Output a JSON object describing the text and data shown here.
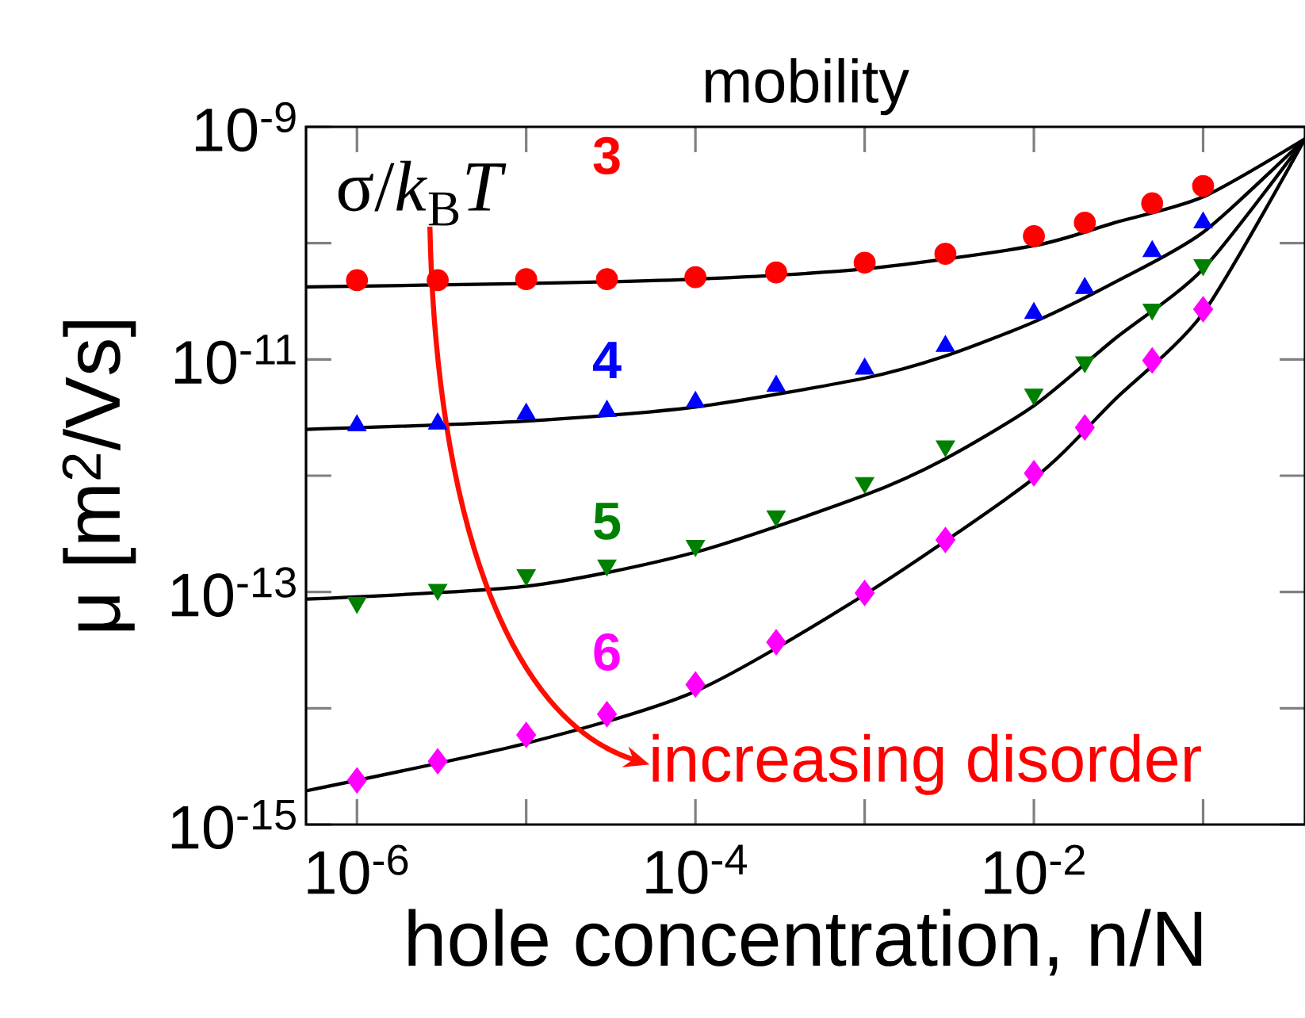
{
  "chart_data": {
    "type": "scatter",
    "title": "mobility",
    "xlabel": "hole concentration, n/N",
    "ylabel": "μ [m$^{2}$/Vs]",
    "annotations": [
      "σ/*k*$_{B}$*T*",
      "increasing disorder"
    ],
    "log": "xy",
    "xlim": [
      5e-07,
      0.4
    ],
    "ylim": [
      1e-15,
      1e-09
    ],
    "xticks": [
      {
        "value": 1e-06,
        "label": "10$^{-6}$"
      },
      {
        "value": 1e-05,
        "label": null
      },
      {
        "value": 0.0001,
        "label": "10$^{-4}$"
      },
      {
        "value": 0.001,
        "label": null
      },
      {
        "value": 0.01,
        "label": "10$^{-2}$"
      },
      {
        "value": 0.1,
        "label": null
      }
    ],
    "yticks": [
      {
        "value": 1e-15,
        "label": "10$^{-15}$"
      },
      {
        "value": 1e-14,
        "label": null
      },
      {
        "value": 1e-13,
        "label": "10$^{-13}$"
      },
      {
        "value": 1e-12,
        "label": null
      },
      {
        "value": 1e-11,
        "label": "10$^{-11}$"
      },
      {
        "value": 1e-10,
        "label": null
      },
      {
        "value": 1e-09,
        "label": "10$^{-9}$"
      }
    ],
    "x": [
      1e-06,
      3e-06,
      1e-05,
      3e-05,
      0.0001,
      0.0003,
      0.001,
      0.003,
      0.01,
      0.02,
      0.05,
      0.1
    ],
    "series": [
      {
        "name": "3",
        "color": "#ff0000",
        "marker": "circle",
        "values": [
          4.8e-11,
          4.8e-11,
          4.9e-11,
          4.9e-11,
          5.1e-11,
          5.6e-11,
          6.8e-11,
          8.1e-11,
          1.15e-10,
          1.5e-10,
          2.2e-10,
          3.1e-10
        ]
      },
      {
        "name": "4",
        "color": "#0000ff",
        "marker": "triangle",
        "values": [
          2.7e-12,
          2.8e-12,
          3.4e-12,
          3.6e-12,
          4.3e-12,
          5.9e-12,
          8.3e-12,
          1.3e-11,
          2.5e-11,
          4.1e-11,
          8.5e-11,
          1.5e-10
        ]
      },
      {
        "name": "5",
        "color": "#008000",
        "marker": "triangle-down",
        "values": [
          8.1e-14,
          1.05e-13,
          1.4e-13,
          1.7e-13,
          2.5e-13,
          4.5e-13,
          8.7e-13,
          1.8e-12,
          5e-12,
          9.5e-12,
          2.7e-11,
          6.5e-11
        ]
      },
      {
        "name": "6",
        "color": "#ff00ff",
        "marker": "diamond",
        "values": [
          2.4e-15,
          3.5e-15,
          5.9e-15,
          8.9e-15,
          1.6e-14,
          3.7e-14,
          9.8e-14,
          2.8e-13,
          1.05e-12,
          2.6e-12,
          9.8e-12,
          2.7e-11
        ]
      },
      {
        "type": "line",
        "color": "#000000",
        "marker": "none",
        "x": [
          5e-07,
          1e-05,
          0.0001,
          0.001,
          0.01,
          0.03,
          0.1,
          0.4
        ],
        "values": [
          4.2e-11,
          4.5e-11,
          4.9e-11,
          6e-11,
          9.5e-11,
          1.5e-10,
          2.5e-10,
          7.9e-10
        ]
      },
      {
        "type": "line",
        "color": "#000000",
        "marker": "none",
        "x": [
          5e-07,
          1e-05,
          0.0001,
          0.001,
          0.003,
          0.01,
          0.03,
          0.1,
          0.4
        ],
        "values": [
          2.5e-12,
          2.95e-12,
          3.9e-12,
          6.9e-12,
          1.07e-11,
          2.1e-11,
          4.6e-11,
          1.24e-10,
          7.9e-10
        ]
      },
      {
        "type": "line",
        "color": "#000000",
        "marker": "none",
        "x": [
          5e-07,
          1e-05,
          0.0001,
          0.001,
          0.003,
          0.01,
          0.03,
          0.1,
          0.4
        ],
        "values": [
          8.7e-14,
          1.12e-13,
          2.2e-13,
          6.8e-13,
          1.4e-12,
          4e-12,
          1.5e-11,
          6e-11,
          7.9e-10
        ]
      },
      {
        "type": "line",
        "color": "#000000",
        "marker": "none",
        "x": [
          5e-07,
          1e-05,
          0.0001,
          0.001,
          0.01,
          0.03,
          0.1,
          0.4
        ],
        "values": [
          1.95e-15,
          5e-15,
          1.4e-14,
          9.5e-14,
          9.5e-13,
          4.5e-12,
          2.5e-11,
          7.9e-10
        ]
      }
    ]
  }
}
